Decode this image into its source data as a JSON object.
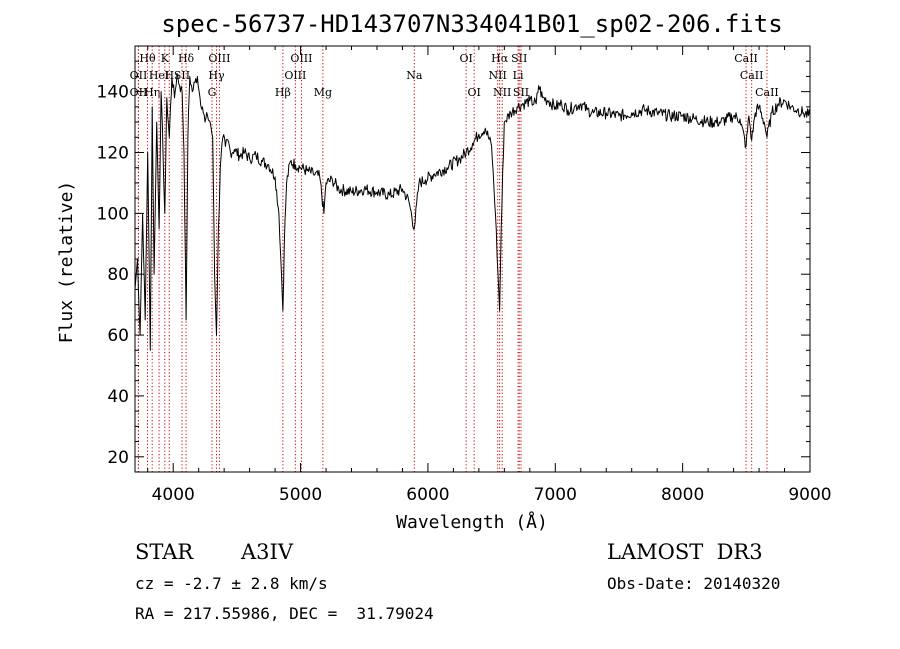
{
  "chart_data": {
    "type": "line",
    "title": "spec-56737-HD143707N334041B01_sp02-206.fits",
    "xlabel": "Wavelength (Å)",
    "ylabel": "Flux (relative)",
    "xlim": [
      3700,
      9000
    ],
    "ylim": [
      15,
      155
    ],
    "x_ticks": [
      4000,
      5000,
      6000,
      7000,
      8000,
      9000
    ],
    "y_ticks": [
      20,
      40,
      60,
      80,
      100,
      120,
      140
    ],
    "series": [
      {
        "name": "flux",
        "x": [
          3700,
          3720,
          3740,
          3760,
          3780,
          3800,
          3820,
          3835,
          3850,
          3870,
          3889,
          3905,
          3920,
          3934,
          3950,
          3969,
          3990,
          4010,
          4030,
          4050,
          4070,
          4085,
          4101,
          4115,
          4130,
          4150,
          4170,
          4190,
          4210,
          4230,
          4250,
          4270,
          4290,
          4310,
          4325,
          4340,
          4355,
          4370,
          4390,
          4410,
          4430,
          4450,
          4480,
          4520,
          4560,
          4600,
          4650,
          4700,
          4750,
          4800,
          4830,
          4850,
          4861,
          4872,
          4890,
          4920,
          4960,
          5000,
          5050,
          5100,
          5150,
          5183,
          5200,
          5250,
          5300,
          5400,
          5500,
          5600,
          5700,
          5800,
          5850,
          5893,
          5930,
          5980,
          6050,
          6150,
          6250,
          6300,
          6350,
          6400,
          6450,
          6500,
          6530,
          6550,
          6563,
          6575,
          6600,
          6650,
          6700,
          6750,
          6800,
          6850,
          6870,
          6900,
          6950,
          7000,
          7050,
          7100,
          7150,
          7200,
          7250,
          7300,
          7400,
          7500,
          7600,
          7700,
          7800,
          7900,
          8000,
          8100,
          8200,
          8300,
          8400,
          8450,
          8498,
          8520,
          8542,
          8570,
          8600,
          8640,
          8662,
          8700,
          8750,
          8800,
          8850,
          8900,
          8950,
          9000
        ],
        "values": [
          75,
          85,
          60,
          100,
          65,
          120,
          55,
          135,
          80,
          130,
          95,
          140,
          120,
          100,
          138,
          125,
          145,
          138,
          146,
          142,
          140,
          120,
          65,
          125,
          145,
          140,
          143,
          145,
          138,
          135,
          130,
          132,
          130,
          125,
          80,
          60,
          95,
          115,
          125,
          122,
          124,
          120,
          121,
          119,
          120,
          118,
          119,
          117,
          116,
          112,
          100,
          80,
          68,
          90,
          110,
          117,
          116,
          115,
          114,
          113,
          112,
          100,
          110,
          111,
          108,
          107,
          108,
          107,
          106,
          108,
          104,
          95,
          110,
          111,
          113,
          115,
          118,
          120,
          123,
          126,
          128,
          122,
          100,
          80,
          68,
          95,
          130,
          133,
          135,
          136,
          137,
          136,
          142,
          138,
          137,
          135,
          136,
          134,
          135,
          136,
          134,
          133,
          133,
          132,
          133,
          134,
          133,
          132,
          132,
          131,
          130,
          130,
          132,
          131,
          122,
          132,
          124,
          133,
          135,
          130,
          125,
          133,
          136,
          137,
          135,
          134,
          133,
          132
        ]
      }
    ],
    "line_marks": [
      {
        "label": "Hθ",
        "wave": 3798,
        "row": 1
      },
      {
        "label": "OII",
        "wave": 3727,
        "row": 2
      },
      {
        "label": "OII",
        "wave": 3727,
        "row": 3
      },
      {
        "label": "Hη",
        "wave": 3835,
        "row": 3
      },
      {
        "label": "K",
        "wave": 3934,
        "row": 1
      },
      {
        "label": "HeI",
        "wave": 3889,
        "row": 2
      },
      {
        "label": "H",
        "wave": 3969,
        "row": 2
      },
      {
        "label": "Hδ",
        "wave": 4101,
        "row": 1
      },
      {
        "label": "SII",
        "wave": 4069,
        "row": 2
      },
      {
        "label": "OIII",
        "wave": 4363,
        "row": 1
      },
      {
        "label": "Hγ",
        "wave": 4340,
        "row": 2
      },
      {
        "label": "G",
        "wave": 4305,
        "row": 3
      },
      {
        "label": "OIII",
        "wave": 5007,
        "row": 1
      },
      {
        "label": "OIII",
        "wave": 4959,
        "row": 2
      },
      {
        "label": "Hβ",
        "wave": 4861,
        "row": 3
      },
      {
        "label": "Mg",
        "wave": 5175,
        "row": 3
      },
      {
        "label": "Na",
        "wave": 5893,
        "row": 2
      },
      {
        "label": "OI",
        "wave": 6300,
        "row": 1
      },
      {
        "label": "OI",
        "wave": 6363,
        "row": 3
      },
      {
        "label": "Hα",
        "wave": 6563,
        "row": 1
      },
      {
        "label": "SII",
        "wave": 6717,
        "row": 1
      },
      {
        "label": "NII",
        "wave": 6548,
        "row": 2
      },
      {
        "label": "Li",
        "wave": 6708,
        "row": 2
      },
      {
        "label": "NII",
        "wave": 6583,
        "row": 3
      },
      {
        "label": "SII",
        "wave": 6731,
        "row": 3
      },
      {
        "label": "CaII",
        "wave": 8498,
        "row": 1
      },
      {
        "label": "CaII",
        "wave": 8542,
        "row": 2
      },
      {
        "label": "CaII",
        "wave": 8662,
        "row": 3
      }
    ]
  },
  "info": {
    "object_class": "STAR",
    "subclass": "A3IV",
    "survey": "LAMOST  DR3",
    "redshift": "cz = -2.7 ± 2.8 km/s",
    "obs_date": "Obs-Date: 20140320",
    "coords": "RA = 217.55986, DEC =  31.79024"
  },
  "colors": {
    "spectrum": "#000000",
    "line_marker": "#cc0000",
    "axes": "#000000",
    "background": "#ffffff"
  }
}
